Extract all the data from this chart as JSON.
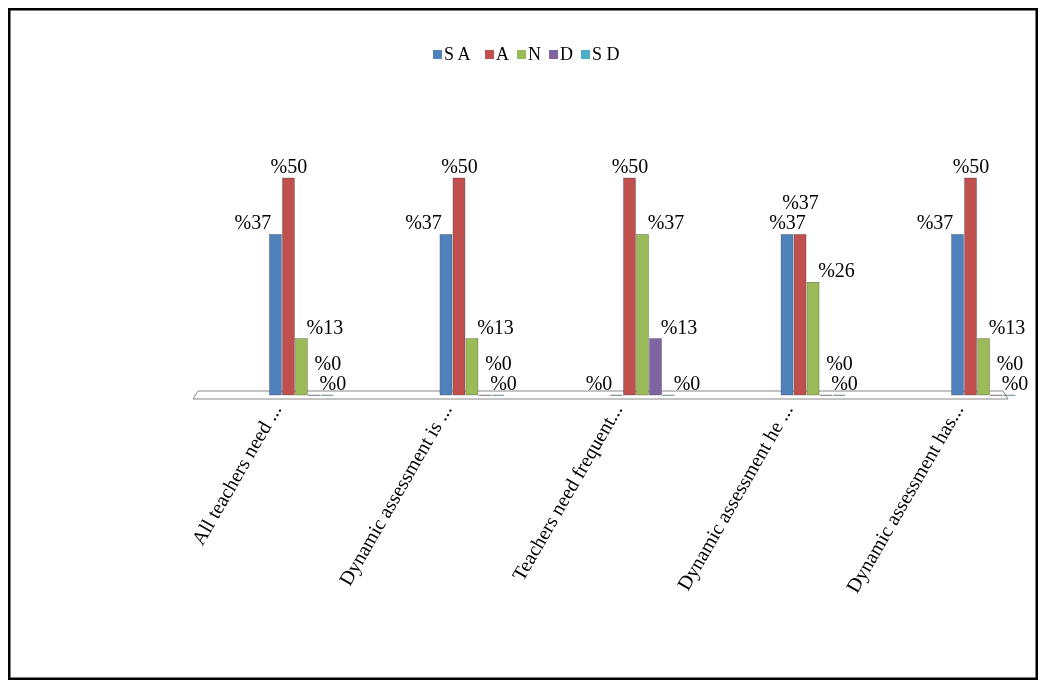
{
  "chart_data": {
    "type": "bar",
    "categories": [
      "All teachers need ...",
      "Dynamic assessment is ...",
      "Teachers need frequent...",
      "Dynamic assessment he ...",
      "Dynamic assessment has..."
    ],
    "series": [
      {
        "name": "S A",
        "color": "#4f81bd",
        "values": [
          37,
          37,
          0,
          37,
          37
        ],
        "value_labels": [
          "%37",
          "%37",
          "%0",
          "%37",
          "%37"
        ]
      },
      {
        "name": "A",
        "color": "#c0504d",
        "values": [
          50,
          50,
          50,
          37,
          50
        ],
        "value_labels": [
          "%50",
          "%50",
          "%50",
          "%37",
          "%50"
        ]
      },
      {
        "name": "N",
        "color": "#9bbb59",
        "values": [
          13,
          13,
          37,
          26,
          13
        ],
        "value_labels": [
          "%13",
          "%13",
          "%37",
          "%26",
          "%13"
        ]
      },
      {
        "name": "D",
        "color": "#8064a2",
        "values": [
          0,
          0,
          13,
          0,
          0
        ],
        "value_labels": [
          "%0",
          "%0",
          "%13",
          "%0",
          "%0"
        ]
      },
      {
        "name": "S D",
        "color": "#4bacc6",
        "values": [
          0,
          0,
          0,
          0,
          0
        ],
        "value_labels": [
          "%0",
          "%0",
          "%0",
          "%0",
          "%0"
        ]
      }
    ],
    "legend": "top"
  }
}
